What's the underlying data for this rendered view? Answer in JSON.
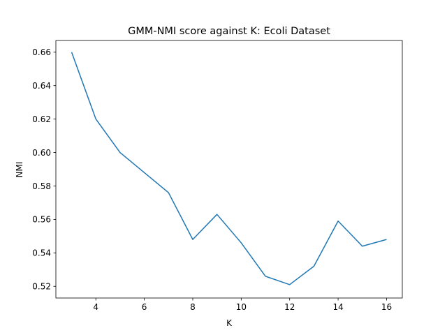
{
  "chart_data": {
    "type": "line",
    "title": "GMM-NMI score against K: Ecoli Dataset",
    "xlabel": "K",
    "ylabel": "NMI",
    "xlim": [
      2.35,
      16.65
    ],
    "ylim": [
      0.513,
      0.667
    ],
    "xticks": [
      4,
      6,
      8,
      10,
      12,
      14,
      16
    ],
    "yticks": [
      0.52,
      0.54,
      0.56,
      0.58,
      0.6,
      0.62,
      0.64,
      0.66
    ],
    "xtick_labels": [
      "4",
      "6",
      "8",
      "10",
      "12",
      "14",
      "16"
    ],
    "ytick_labels": [
      "0.52",
      "0.54",
      "0.56",
      "0.58",
      "0.60",
      "0.62",
      "0.64",
      "0.66"
    ],
    "grid": false,
    "series": [
      {
        "color": "#1f77b4",
        "x": [
          3,
          4,
          5,
          6,
          7,
          8,
          9,
          10,
          11,
          12,
          13,
          14,
          15,
          16
        ],
        "y": [
          0.66,
          0.62,
          0.6,
          0.588,
          0.576,
          0.548,
          0.563,
          0.546,
          0.526,
          0.521,
          0.532,
          0.559,
          0.544,
          0.548
        ]
      }
    ]
  }
}
